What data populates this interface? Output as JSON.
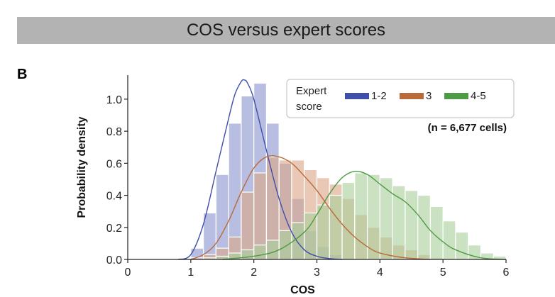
{
  "header": {
    "title": "COS versus expert scores"
  },
  "panel_label": "B",
  "chart_data": {
    "type": "bar",
    "title": "",
    "xlabel": "COS",
    "ylabel": "Probability density",
    "xlim": [
      0,
      6
    ],
    "ylim": [
      0,
      1.15
    ],
    "xticks": [
      "0",
      "1",
      "2",
      "3",
      "4",
      "5",
      "6"
    ],
    "yticks": [
      "0.0",
      "0.2",
      "0.4",
      "0.6",
      "0.8",
      "1.0"
    ],
    "grid": false,
    "bin_start": 1.0,
    "bin_width": 0.2,
    "legend": {
      "title": "Expert score",
      "placement": "top-right"
    },
    "annotation": "(n = 6,677 cells)",
    "series": [
      {
        "name": "1-2",
        "color": "#3f4fa8",
        "bar_color": "#8d96cf",
        "bin_values": [
          0.07,
          0.29,
          0.53,
          0.85,
          1.02,
          1.1,
          0.85,
          0.6,
          0.38,
          0.18,
          0.08,
          0.03,
          0.01,
          0.0
        ],
        "curve_x": [
          0.8,
          1.0,
          1.2,
          1.4,
          1.6,
          1.7,
          1.8,
          1.85,
          1.9,
          2.0,
          2.2,
          2.4,
          2.6,
          2.8,
          3.0,
          3.2,
          3.4
        ],
        "curve_y": [
          0.0,
          0.03,
          0.22,
          0.55,
          0.88,
          1.03,
          1.11,
          1.12,
          1.1,
          1.0,
          0.68,
          0.38,
          0.17,
          0.06,
          0.02,
          0.005,
          0.0
        ]
      },
      {
        "name": "3",
        "color": "#b86a3a",
        "bar_color": "#dba887",
        "bin_values": [
          0.01,
          0.03,
          0.07,
          0.14,
          0.42,
          0.54,
          0.64,
          0.62,
          0.62,
          0.56,
          0.51,
          0.47,
          0.38,
          0.28,
          0.2,
          0.14,
          0.09,
          0.06,
          0.03,
          0.01
        ],
        "curve_x": [
          1.0,
          1.2,
          1.4,
          1.6,
          1.8,
          2.0,
          2.2,
          2.4,
          2.6,
          2.8,
          3.0,
          3.2,
          3.4,
          3.6,
          3.8,
          4.0,
          4.4,
          4.8
        ],
        "curve_y": [
          0.0,
          0.03,
          0.1,
          0.24,
          0.42,
          0.57,
          0.64,
          0.64,
          0.6,
          0.52,
          0.43,
          0.32,
          0.22,
          0.14,
          0.08,
          0.04,
          0.01,
          0.0
        ]
      },
      {
        "name": "4-5",
        "color": "#4f9a44",
        "bar_color": "#a9d19c",
        "bin_values": [
          0.0,
          0.01,
          0.02,
          0.04,
          0.06,
          0.09,
          0.12,
          0.18,
          0.23,
          0.29,
          0.34,
          0.4,
          0.48,
          0.54,
          0.53,
          0.51,
          0.46,
          0.43,
          0.4,
          0.33,
          0.24,
          0.17,
          0.09,
          0.04,
          0.02
        ],
        "curve_x": [
          1.5,
          2.0,
          2.4,
          2.8,
          3.0,
          3.2,
          3.4,
          3.6,
          3.8,
          4.0,
          4.2,
          4.4,
          4.6,
          4.8,
          5.0,
          5.2,
          5.6,
          6.0
        ],
        "curve_y": [
          0.0,
          0.02,
          0.06,
          0.17,
          0.28,
          0.41,
          0.51,
          0.55,
          0.53,
          0.47,
          0.41,
          0.36,
          0.28,
          0.18,
          0.11,
          0.06,
          0.01,
          0.0
        ]
      }
    ]
  }
}
